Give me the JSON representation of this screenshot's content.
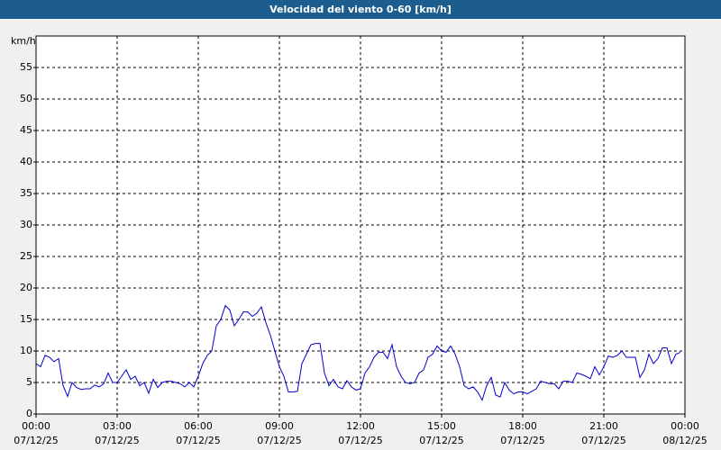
{
  "chart_data": {
    "type": "line",
    "title": "Velocidad del viento 0-60 [km/h]",
    "y_unit": "km/h",
    "xlim": [
      0,
      1440
    ],
    "ylim": [
      0,
      60
    ],
    "yticks": [
      0,
      5,
      10,
      15,
      20,
      25,
      30,
      35,
      40,
      45,
      50,
      55
    ],
    "xticks": [
      {
        "value": 0,
        "label": "00:00",
        "date": "07/12/25"
      },
      {
        "value": 180,
        "label": "03:00",
        "date": "07/12/25"
      },
      {
        "value": 360,
        "label": "06:00",
        "date": "07/12/25"
      },
      {
        "value": 540,
        "label": "09:00",
        "date": "07/12/25"
      },
      {
        "value": 720,
        "label": "12:00",
        "date": "07/12/25"
      },
      {
        "value": 900,
        "label": "15:00",
        "date": "07/12/25"
      },
      {
        "value": 1080,
        "label": "18:00",
        "date": "07/12/25"
      },
      {
        "value": 1260,
        "label": "21:00",
        "date": "07/12/25"
      },
      {
        "value": 1440,
        "label": "00:00",
        "date": "08/12/25"
      }
    ],
    "grid": true,
    "x": [
      0,
      10,
      20,
      30,
      40,
      50,
      60,
      70,
      80,
      90,
      100,
      110,
      120,
      130,
      140,
      150,
      160,
      170,
      180,
      190,
      200,
      210,
      220,
      230,
      240,
      250,
      260,
      270,
      280,
      290,
      300,
      310,
      320,
      330,
      340,
      350,
      360,
      370,
      380,
      390,
      400,
      410,
      420,
      430,
      440,
      450,
      460,
      470,
      480,
      490,
      500,
      510,
      520,
      530,
      540,
      550,
      560,
      570,
      580,
      590,
      600,
      610,
      620,
      630,
      640,
      650,
      660,
      670,
      680,
      690,
      700,
      710,
      720,
      730,
      740,
      750,
      760,
      770,
      780,
      790,
      800,
      810,
      820,
      830,
      840,
      850,
      860,
      870,
      880,
      890,
      900,
      910,
      920,
      930,
      940,
      950,
      960,
      970,
      980,
      990,
      1000,
      1010,
      1020,
      1030,
      1040,
      1050,
      1060,
      1070,
      1080,
      1090,
      1100,
      1110,
      1120,
      1130,
      1140,
      1150,
      1160,
      1170,
      1180,
      1190,
      1200,
      1210,
      1220,
      1230,
      1240,
      1250,
      1260,
      1270,
      1280,
      1290,
      1300,
      1310,
      1320,
      1330,
      1340,
      1350,
      1360,
      1370,
      1380,
      1390,
      1400,
      1410,
      1420,
      1430
    ],
    "series": [
      {
        "color": "#0000cc",
        "values": [
          8,
          7.5,
          9.3,
          9,
          8.3,
          8.8,
          4.5,
          2.8,
          5,
          4.2,
          3.9,
          4,
          4,
          4.6,
          4.3,
          4.8,
          6.5,
          5,
          5,
          6,
          7,
          5.5,
          6,
          4.5,
          5,
          3.3,
          5.5,
          4.2,
          5,
          5.2,
          5.2,
          5,
          4.8,
          4.3,
          5,
          4.3,
          6,
          8,
          9.3,
          10,
          14,
          15,
          17.2,
          16.5,
          14,
          15,
          16.2,
          16.2,
          15.5,
          16,
          17,
          14.5,
          12.5,
          10,
          7.5,
          6,
          3.5,
          3.5,
          3.6,
          8,
          9.5,
          11,
          11.2,
          11.2,
          6.5,
          4.5,
          5.5,
          4.3,
          4,
          5.3,
          4.3,
          3.8,
          4,
          6.5,
          7.5,
          9,
          9.8,
          9.8,
          8.8,
          11,
          7.5,
          6,
          5,
          4.8,
          5,
          6.5,
          7,
          9,
          9.5,
          10.8,
          10,
          9.8,
          10.8,
          9.5,
          7.5,
          4.5,
          4,
          4.3,
          3.5,
          2.2,
          4.5,
          5.8,
          3,
          2.7,
          5,
          3.8,
          3.2,
          3.5,
          3.5,
          3.2,
          3.6,
          4,
          5.2,
          5,
          4.8,
          4.8,
          4,
          5.2,
          5.2,
          5,
          6.5,
          6.3,
          6,
          5.6,
          7.5,
          6.2,
          7.5,
          9.2,
          9,
          9.3,
          10,
          9,
          9,
          9,
          5.8,
          7,
          9.5,
          8,
          8.8,
          10.5,
          10.5,
          8,
          9.5,
          9.8
        ]
      }
    ]
  }
}
